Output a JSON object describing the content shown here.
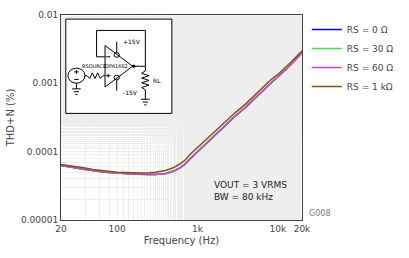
{
  "chart_data": {
    "type": "line",
    "xlabel": "Frequency (Hz)",
    "ylabel": "THD+N (%)",
    "x": [
      20,
      25,
      30,
      40,
      50,
      60,
      70,
      80,
      100,
      130,
      150,
      200,
      250,
      300,
      400,
      500,
      600,
      700,
      800,
      1000,
      1500,
      2000,
      3000,
      4000,
      5000,
      6000,
      7000,
      8000,
      10000,
      13000,
      15000,
      20000
    ],
    "series": [
      {
        "name": "RS = 0 Ω",
        "color": "#0000dd",
        "values": [
          6.3e-05,
          6e-05,
          5.8e-05,
          5.5e-05,
          5.3e-05,
          5.1e-05,
          5e-05,
          4.95e-05,
          4.85e-05,
          4.75e-05,
          4.72e-05,
          4.68e-05,
          4.62e-05,
          4.65e-05,
          4.8e-05,
          5.2e-05,
          5.8e-05,
          6.6e-05,
          7.8e-05,
          0.0001,
          0.00016,
          0.00022,
          0.00034,
          0.00045,
          0.00058,
          0.00072,
          0.00085,
          0.001,
          0.00125,
          0.00165,
          0.00195,
          0.0028
        ]
      },
      {
        "name": "RS = 30 Ω",
        "color": "#44dd44",
        "values": [
          6.3e-05,
          6e-05,
          5.8e-05,
          5.5e-05,
          5.3e-05,
          5.1e-05,
          5e-05,
          4.95e-05,
          4.85e-05,
          4.75e-05,
          4.72e-05,
          4.68e-05,
          4.62e-05,
          4.65e-05,
          4.8e-05,
          5.2e-05,
          5.8e-05,
          6.6e-05,
          7.8e-05,
          0.0001,
          0.00016,
          0.00022,
          0.00034,
          0.00045,
          0.00058,
          0.00072,
          0.00085,
          0.001,
          0.00125,
          0.00165,
          0.00195,
          0.0028
        ]
      },
      {
        "name": "RS = 60 Ω",
        "color": "#cc44cc",
        "values": [
          6.3e-05,
          6e-05,
          5.8e-05,
          5.5e-05,
          5.3e-05,
          5.1e-05,
          5e-05,
          4.95e-05,
          4.85e-05,
          4.75e-05,
          4.72e-05,
          4.65e-05,
          4.6e-05,
          4.62e-05,
          4.76e-05,
          5.1e-05,
          5.7e-05,
          6.5e-05,
          7.7e-05,
          9.8e-05,
          0.000155,
          0.000215,
          0.000335,
          0.000445,
          0.000575,
          0.000715,
          0.00084,
          0.00099,
          0.00124,
          0.00164,
          0.00193,
          0.00278
        ]
      },
      {
        "name": "RS = 1 kΩ",
        "color": "#8b5010",
        "values": [
          6.5e-05,
          6.2e-05,
          6e-05,
          5.75e-05,
          5.5e-05,
          5.35e-05,
          5.2e-05,
          5.1e-05,
          5e-05,
          4.95e-05,
          4.9e-05,
          4.88e-05,
          4.9e-05,
          5e-05,
          5.3e-05,
          5.8e-05,
          6.6e-05,
          7.5e-05,
          9e-05,
          0.000115,
          0.00018,
          0.00025,
          0.00038,
          0.0005,
          0.00064,
          0.00079,
          0.00093,
          0.0011,
          0.00135,
          0.0018,
          0.0021,
          0.003
        ]
      }
    ],
    "log": true,
    "xlim": [
      20,
      20000
    ],
    "ylim": [
      1e-05,
      0.01
    ],
    "xticks": [
      20,
      100,
      {
        "value": 1000,
        "label": "1k"
      },
      {
        "value": 10000,
        "label": "10k"
      },
      {
        "value": 20000,
        "label": "20k"
      }
    ],
    "yticks": [
      1e-05,
      0.0001,
      0.001,
      0.01
    ],
    "grid": true,
    "legend": "upper right",
    "annotations": [
      "VOUT = 3 VRMS\nBW = 80 kHz",
      "G008",
      "OPA1662",
      "+15V",
      "-15V",
      "RL",
      "RSOURCE"
    ]
  }
}
